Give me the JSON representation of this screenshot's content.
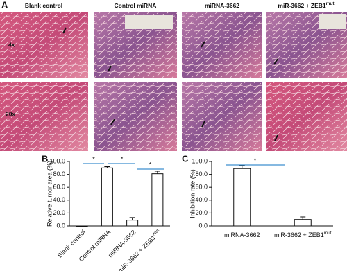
{
  "figure": {
    "panel_labels": [
      "A",
      "B",
      "C"
    ],
    "panel_a": {
      "columns": [
        "Blank control",
        "Control miRNA",
        "miRNA-3662",
        "miR-3662 + ZEB1"
      ],
      "column_superscripts": [
        null,
        null,
        null,
        "mut"
      ],
      "rows": [
        "4x",
        "20x"
      ]
    }
  },
  "chart_data": [
    {
      "type": "bar",
      "y_label": "Relative tumor area (%)",
      "categories": [
        "Blank control",
        "Control miRNA",
        "miRNA-3662",
        "miR-3662 + ZEB1"
      ],
      "superscripts": [
        null,
        null,
        null,
        "mut"
      ],
      "values": [
        0,
        90,
        9,
        81
      ],
      "errors": [
        null,
        2,
        4,
        4
      ],
      "color": "#ffffff",
      "ylim": [
        0,
        100
      ],
      "yticks": [
        {
          "value": 0,
          "label": "0.0"
        },
        {
          "value": 20,
          "label": "20.0"
        },
        {
          "value": 40,
          "label": "40.0"
        },
        {
          "value": 60,
          "label": "60.0"
        },
        {
          "value": 80,
          "label": "80.0"
        },
        {
          "value": 100,
          "label": "100.0"
        }
      ],
      "annotations": [
        "*",
        "*",
        "*"
      ]
    },
    {
      "type": "bar",
      "y_label": "Inhibition rate (%)",
      "categories": [
        "miRNA-3662",
        "miR-3662 + ZEB1"
      ],
      "superscripts": [
        null,
        "mut"
      ],
      "values": [
        89,
        10
      ],
      "errors": [
        5,
        4
      ],
      "color": "#ffffff",
      "ylim": [
        0,
        100
      ],
      "yticks": [
        {
          "value": 0,
          "label": "0.0"
        },
        {
          "value": 20,
          "label": "20.0"
        },
        {
          "value": 40,
          "label": "40.0"
        },
        {
          "value": 60,
          "label": "60.0"
        },
        {
          "value": 80,
          "label": "80.0"
        },
        {
          "value": 100,
          "label": "100.0"
        }
      ],
      "annotations": [
        "*"
      ]
    }
  ]
}
